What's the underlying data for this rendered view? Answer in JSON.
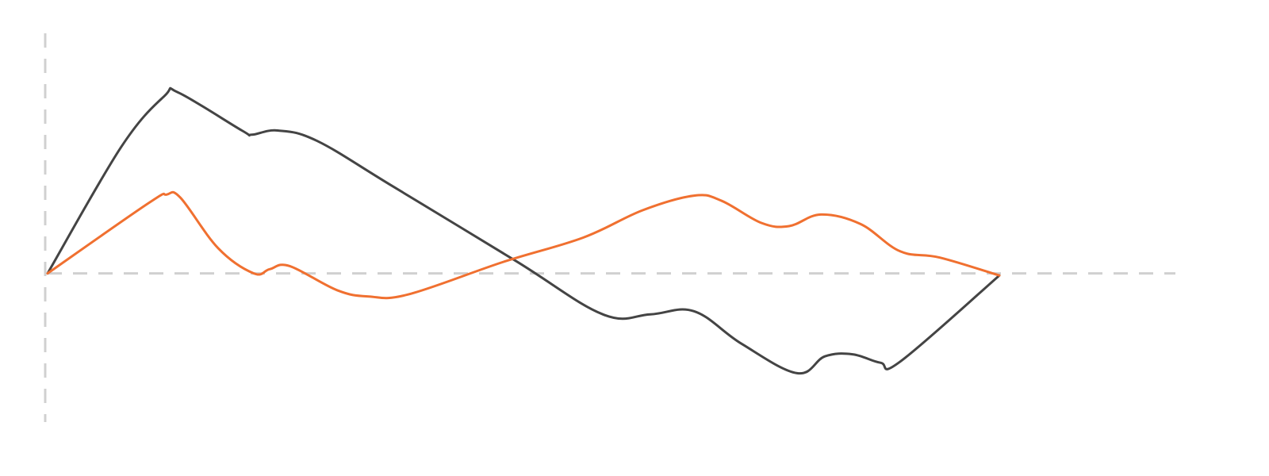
{
  "chart_data": {
    "type": "line",
    "title": "",
    "xlabel": "",
    "ylabel": "",
    "grid": false,
    "legend": "none",
    "xlim": [
      0,
      24
    ],
    "ylim": [
      -1.4,
      2.3
    ],
    "zero_baseline": true,
    "colors": {
      "axis": "#d0d0d0",
      "background": "#ffffff"
    },
    "series": [
      {
        "color": "#444444",
        "x": [
          0,
          1.85,
          2.95,
          3.3,
          4.9,
          5.15,
          5.8,
          6.8,
          8.7,
          11.8,
          14.0,
          15.2,
          16.3,
          17.5,
          18.9,
          19.6,
          20.3,
          21.0,
          21.5,
          24.0
        ],
        "y": [
          0,
          1.2,
          1.69,
          1.72,
          1.36,
          1.32,
          1.36,
          1.26,
          0.83,
          0.12,
          -0.39,
          -0.39,
          -0.36,
          -0.67,
          -0.95,
          -0.79,
          -0.77,
          -0.85,
          -0.84,
          -0.02
        ]
      },
      {
        "color": "#f07030",
        "x": [
          0,
          2.55,
          3.0,
          3.35,
          4.3,
          5.2,
          5.6,
          6.1,
          7.3,
          8.1,
          9.1,
          11.5,
          13.5,
          15.0,
          16.3,
          17.0,
          18.0,
          18.7,
          19.5,
          20.5,
          21.5,
          22.5,
          24.0
        ],
        "y": [
          0,
          0.67,
          0.75,
          0.72,
          0.24,
          0.0,
          0.04,
          0.07,
          -0.16,
          -0.22,
          -0.2,
          0.11,
          0.34,
          0.6,
          0.74,
          0.69,
          0.48,
          0.45,
          0.56,
          0.47,
          0.21,
          0.15,
          -0.02
        ]
      }
    ]
  }
}
